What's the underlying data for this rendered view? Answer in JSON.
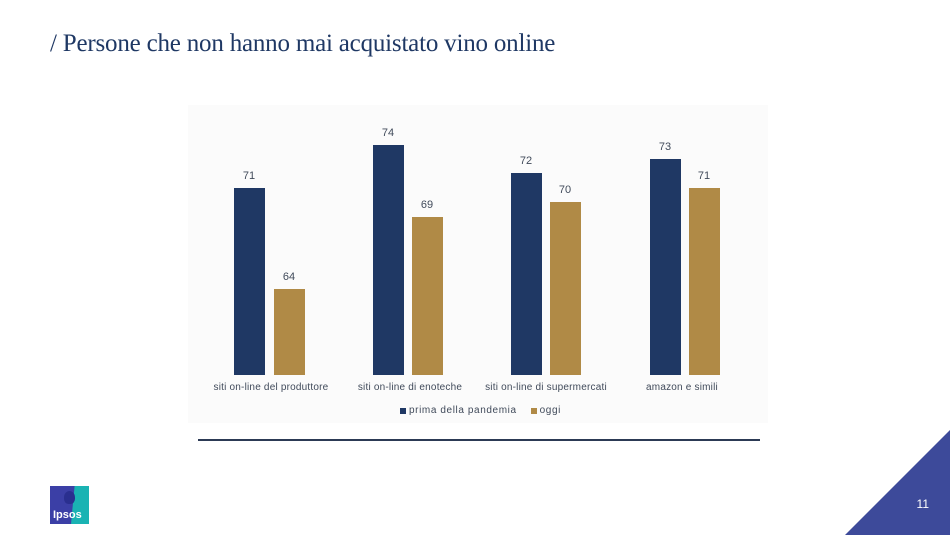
{
  "slide": {
    "title": "/ Persone che non hanno mai acquistato vino online",
    "page_number": "11",
    "logo_text": "Ipsos"
  },
  "colors": {
    "series_prima": "#1f3864",
    "series_oggi": "#b08a46",
    "title": "#1f3864",
    "corner": "#3d4a9a"
  },
  "chart_data": {
    "type": "bar",
    "title": "",
    "xlabel": "",
    "ylabel": "",
    "categories": [
      "siti on-line del produttore",
      "siti on-line di enoteche",
      "siti on-line di supermercati",
      "amazon e simili"
    ],
    "series": [
      {
        "name": "prima della pandemia",
        "values": [
          71,
          74,
          72,
          73
        ]
      },
      {
        "name": "oggi",
        "values": [
          64,
          69,
          70,
          71
        ]
      }
    ],
    "ylim": [
      58,
      76
    ],
    "grid": false,
    "legend_position": "bottom",
    "data_labels": true
  },
  "legend": {
    "items": [
      {
        "label": "prima della pandemia"
      },
      {
        "label": "oggi"
      }
    ]
  },
  "labels": {
    "s0": [
      "71",
      "74",
      "72",
      "73"
    ],
    "s1": [
      "64",
      "69",
      "70",
      "71"
    ]
  }
}
